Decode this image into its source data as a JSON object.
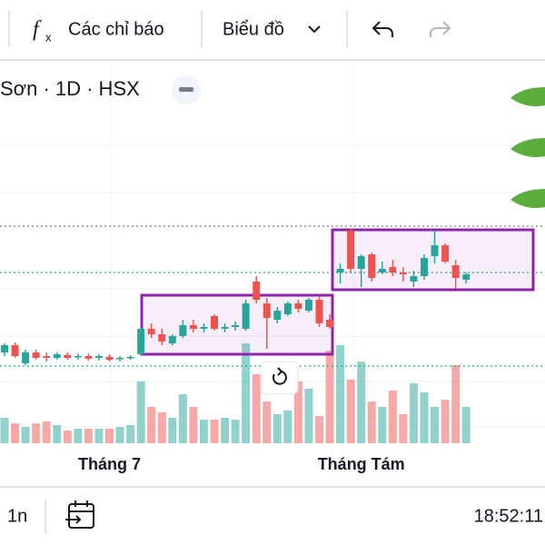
{
  "toolbar": {
    "indicators": "Các chỉ báo",
    "chart": "Biểu đồ"
  },
  "legend": {
    "symbol": "Sơn · 1D · HSX"
  },
  "footer": {
    "range": "1n",
    "time": "18:52:11"
  },
  "chart_data": {
    "type": "candlestick",
    "categories": [
      null,
      null,
      null,
      null,
      null,
      null,
      null,
      null,
      null,
      null,
      "Tháng 7",
      null,
      null,
      null,
      null,
      null,
      null,
      null,
      null,
      null,
      null,
      null,
      null,
      null,
      null,
      null,
      null,
      null,
      null,
      null,
      null,
      null,
      null,
      null,
      "Tháng Tám",
      null,
      null,
      null,
      null,
      null,
      null,
      null,
      null,
      null,
      null
    ],
    "up_color": "#26a69a",
    "down_color": "#ef5350",
    "ylim": [
      0,
      420
    ],
    "y2lim": [
      0,
      140
    ],
    "series": [
      {
        "name": "open",
        "values": [
          92,
          100,
          80,
          92,
          88,
          86,
          89,
          87,
          88,
          86,
          87,
          85,
          86,
          90,
          118,
          112,
          102,
          110,
          122,
          118,
          132,
          118,
          120,
          118,
          170,
          146,
          128,
          134,
          146,
          138,
          150,
          128,
          180,
          226,
          184,
          200,
          180,
          186,
          180,
          170,
          176,
          198,
          210,
          188,
          172
        ]
      },
      {
        "name": "high",
        "values": [
          102,
          103,
          95,
          95,
          92,
          92,
          92,
          91,
          91,
          90,
          90,
          88,
          89,
          120,
          124,
          118,
          112,
          128,
          128,
          124,
          134,
          124,
          126,
          150,
          176,
          152,
          142,
          148,
          150,
          152,
          154,
          134,
          190,
          228,
          200,
          202,
          192,
          194,
          186,
          182,
          200,
          226,
          212,
          194,
          180
        ]
      },
      {
        "name": "low",
        "values": [
          88,
          86,
          78,
          84,
          82,
          84,
          84,
          84,
          83,
          83,
          82,
          82,
          84,
          88,
          108,
          100,
          100,
          108,
          114,
          114,
          116,
          114,
          116,
          116,
          146,
          96,
          124,
          132,
          136,
          136,
          120,
          118,
          168,
          180,
          164,
          170,
          178,
          176,
          170,
          164,
          172,
          190,
          190,
          162,
          168
        ]
      },
      {
        "name": "close",
        "values": [
          100,
          88,
          92,
          86,
          86,
          90,
          86,
          88,
          85,
          88,
          84,
          86,
          87,
          118,
          112,
          104,
          110,
          122,
          118,
          120,
          118,
          120,
          122,
          146,
          150,
          130,
          138,
          146,
          140,
          150,
          124,
          120,
          184,
          184,
          198,
          174,
          184,
          180,
          178,
          176,
          196,
          210,
          192,
          174,
          178
        ]
      },
      {
        "name": "volume",
        "axis": "y2",
        "values": [
          28,
          22,
          18,
          22,
          24,
          20,
          14,
          16,
          16,
          16,
          16,
          18,
          20,
          68,
          40,
          34,
          28,
          54,
          40,
          26,
          26,
          28,
          26,
          110,
          76,
          46,
          32,
          36,
          68,
          60,
          30,
          102,
          108,
          70,
          90,
          46,
          40,
          58,
          32,
          66,
          56,
          40,
          48,
          86,
          40
        ]
      }
    ]
  }
}
